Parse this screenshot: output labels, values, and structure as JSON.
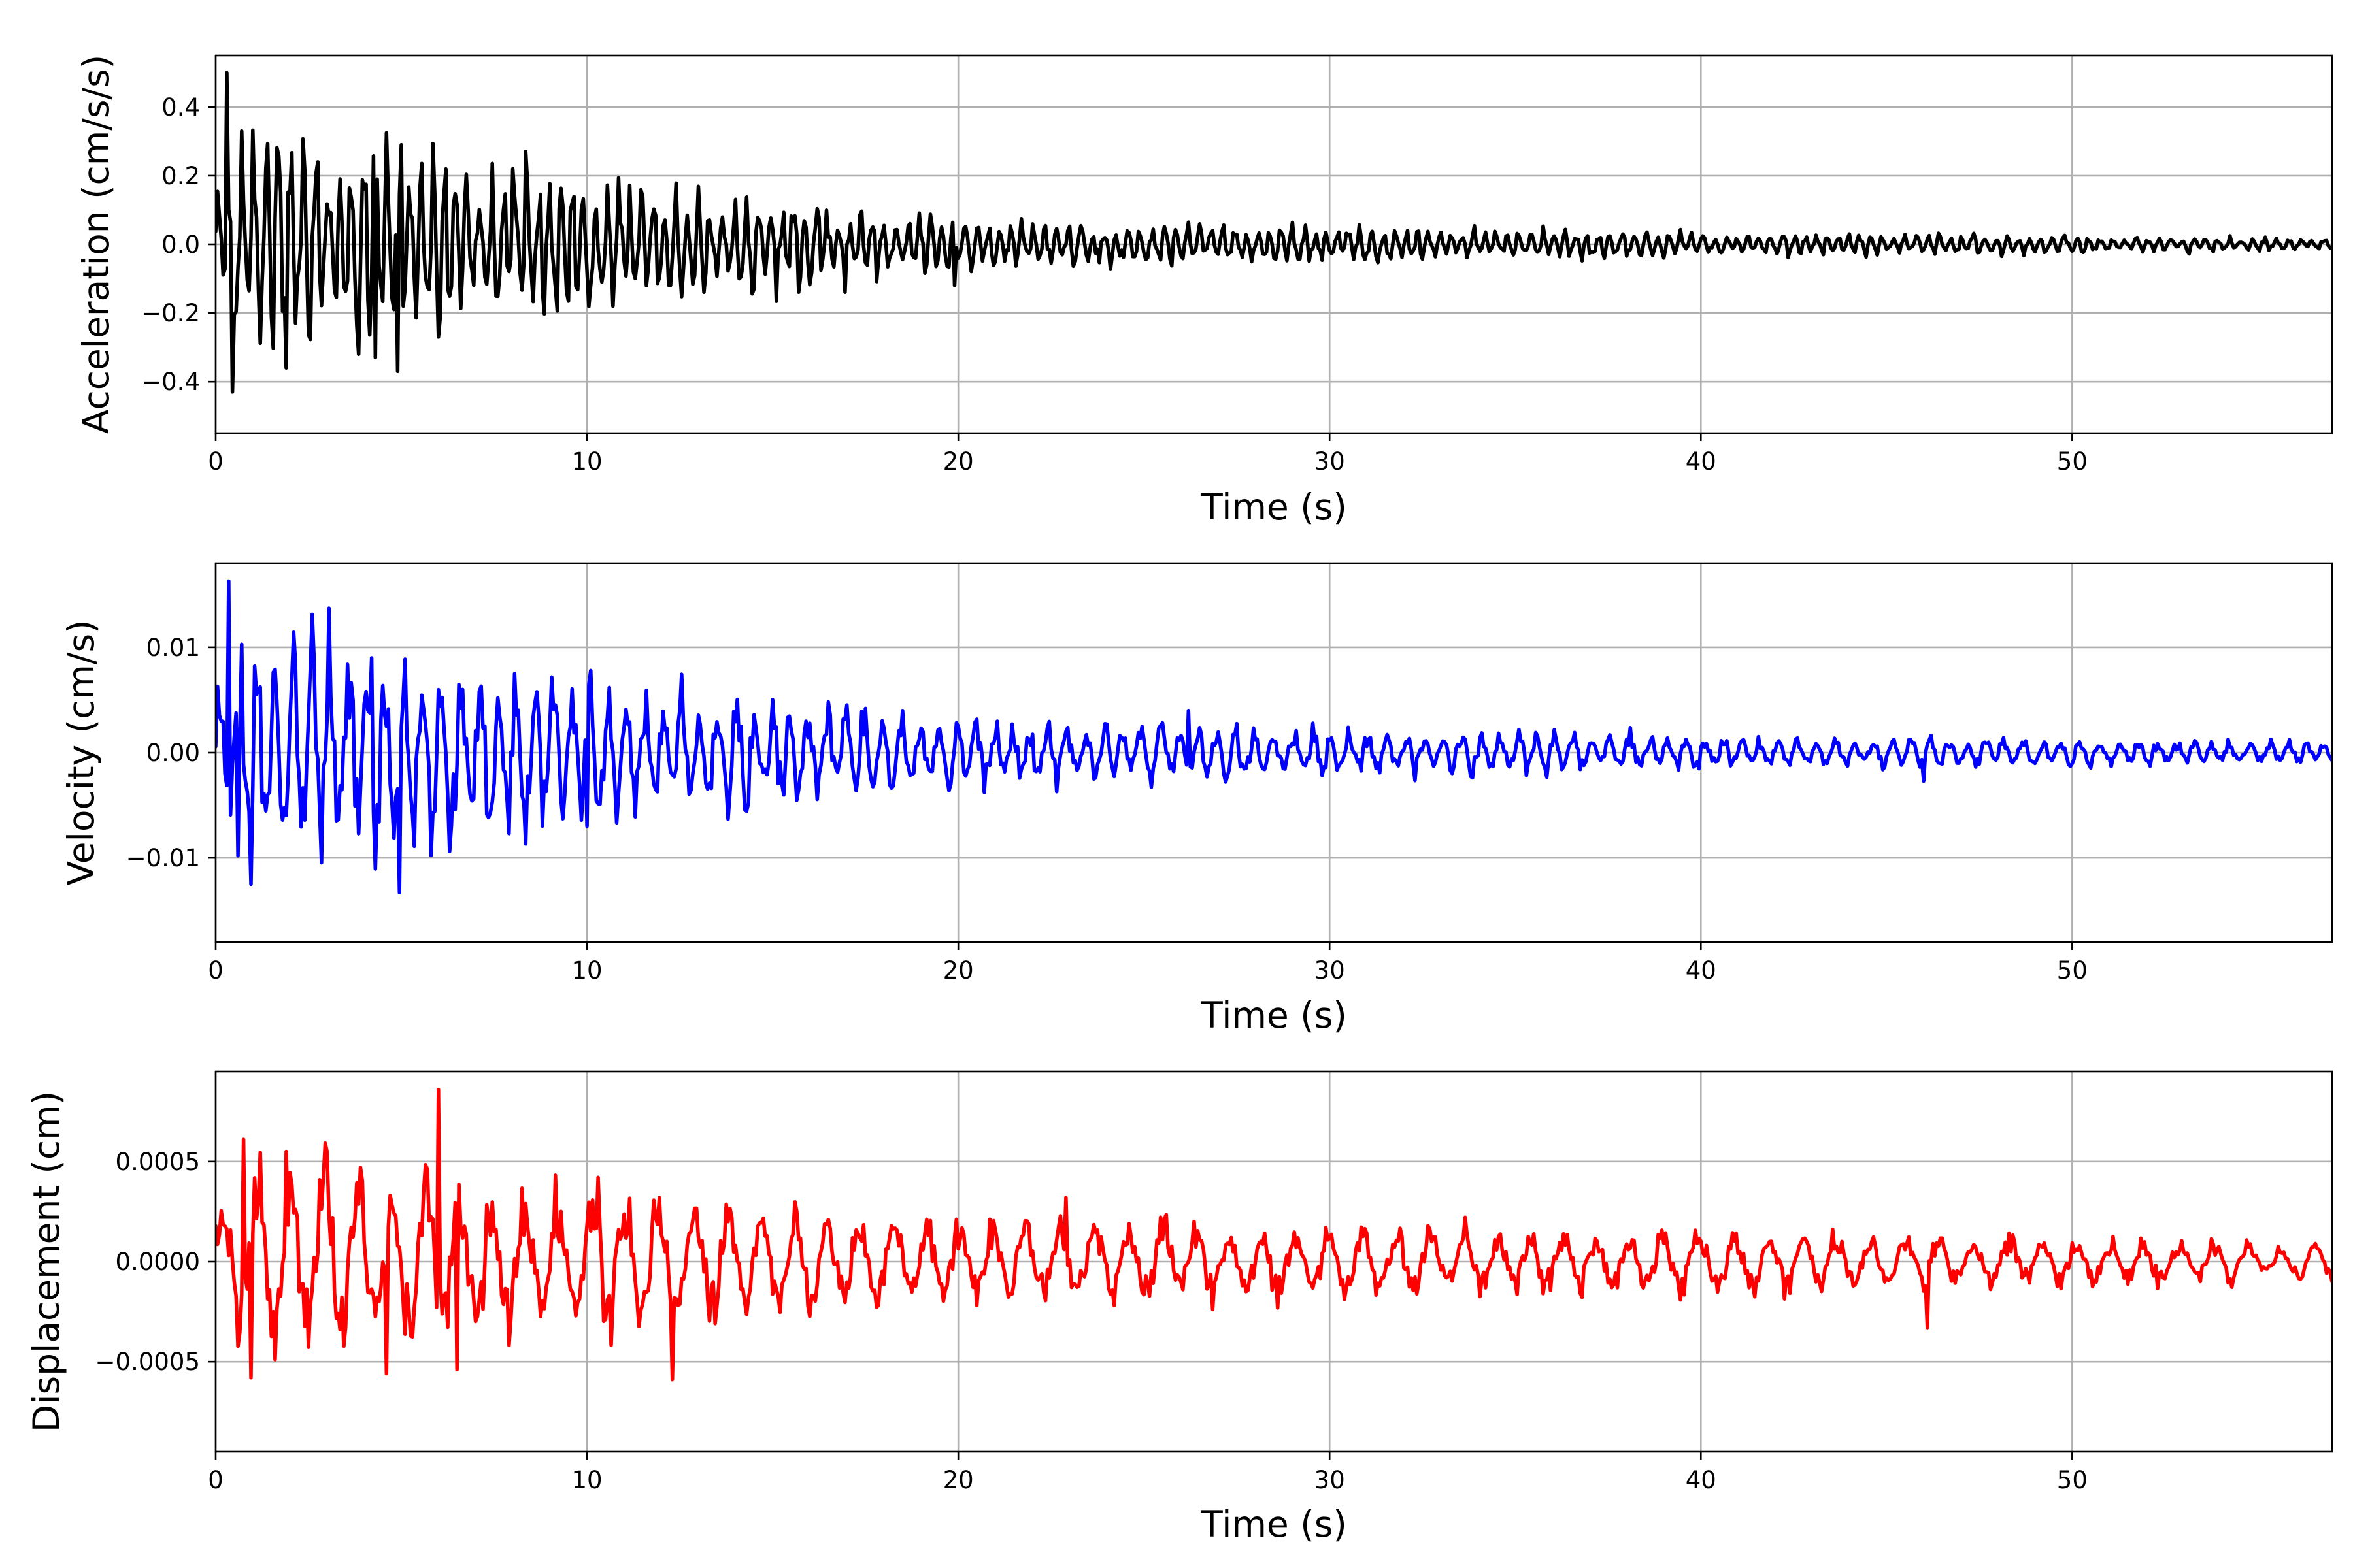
{
  "chart_data": [
    {
      "type": "line",
      "id": "acceleration",
      "xlabel": "Time (s)",
      "ylabel": "Acceleration (cm/s/s)",
      "xlim": [
        0,
        57
      ],
      "ylim": [
        -0.55,
        0.55
      ],
      "xticks": [
        0,
        10,
        20,
        30,
        40,
        50
      ],
      "xtick_labels": [
        "0",
        "10",
        "20",
        "30",
        "40",
        "50"
      ],
      "yticks": [
        -0.4,
        -0.2,
        0.0,
        0.2,
        0.4
      ],
      "ytick_labels": [
        "−0.4",
        "−0.2",
        "0.0",
        "0.2",
        "0.4"
      ],
      "grid": true,
      "color": "#000000",
      "series": [
        {
          "x_start": 0,
          "x_end": 57,
          "dt": 0.05,
          "seed": 11,
          "frequency_hz": 3.2,
          "envelope": [
            [
              0,
              0.1
            ],
            [
              1,
              0.22
            ],
            [
              5,
              0.2
            ],
            [
              10,
              0.12
            ],
            [
              15,
              0.09
            ],
            [
              20,
              0.05
            ],
            [
              30,
              0.035
            ],
            [
              40,
              0.025
            ],
            [
              57,
              0.012
            ]
          ],
          "peaks": [
            [
              0.3,
              0.5
            ],
            [
              0.45,
              -0.43
            ],
            [
              0.7,
              0.33
            ],
            [
              1.9,
              -0.36
            ],
            [
              4.3,
              -0.33
            ],
            [
              4.9,
              -0.37
            ],
            [
              5.0,
              0.29
            ],
            [
              6.0,
              -0.27
            ],
            [
              8.0,
              0.22
            ],
            [
              14.5,
              -0.13
            ],
            [
              19.9,
              -0.12
            ]
          ]
        }
      ]
    },
    {
      "type": "line",
      "id": "velocity",
      "xlabel": "Time (s)",
      "ylabel": "Velocity (cm/s)",
      "xlim": [
        0,
        57
      ],
      "ylim": [
        -0.018,
        0.018
      ],
      "xticks": [
        0,
        10,
        20,
        30,
        40,
        50
      ],
      "xtick_labels": [
        "0",
        "10",
        "20",
        "30",
        "40",
        "50"
      ],
      "yticks": [
        -0.01,
        0.0,
        0.01
      ],
      "ytick_labels": [
        "−0.01",
        "0.00",
        "0.01"
      ],
      "grid": true,
      "color": "#0000ff",
      "series": [
        {
          "x_start": 0,
          "x_end": 57,
          "dt": 0.05,
          "seed": 23,
          "frequency_hz": 2.0,
          "envelope": [
            [
              0,
              0.004
            ],
            [
              1,
              0.008
            ],
            [
              5,
              0.007
            ],
            [
              10,
              0.0045
            ],
            [
              15,
              0.0035
            ],
            [
              20,
              0.0022
            ],
            [
              30,
              0.0015
            ],
            [
              40,
              0.0012
            ],
            [
              57,
              0.0007
            ]
          ],
          "peaks": [
            [
              0.35,
              0.0163
            ],
            [
              0.6,
              -0.0098
            ],
            [
              0.95,
              -0.0125
            ],
            [
              0.7,
              0.0103
            ],
            [
              4.2,
              0.009
            ],
            [
              4.95,
              -0.0133
            ],
            [
              10.1,
              0.0078
            ],
            [
              10.0,
              -0.007
            ],
            [
              26.2,
              0.004
            ],
            [
              46.0,
              -0.0027
            ]
          ]
        }
      ]
    },
    {
      "type": "line",
      "id": "displacement",
      "xlabel": "Time (s)",
      "ylabel": "Displacement (cm)",
      "xlim": [
        0,
        57
      ],
      "ylim": [
        -0.00095,
        0.00095
      ],
      "xticks": [
        0,
        10,
        20,
        30,
        40,
        50
      ],
      "xtick_labels": [
        "0",
        "10",
        "20",
        "30",
        "40",
        "50"
      ],
      "yticks": [
        -0.0005,
        0.0,
        0.0005
      ],
      "ytick_labels": [
        "−0.0005",
        "0.0000",
        "0.0005"
      ],
      "grid": true,
      "color": "#ff0000",
      "series": [
        {
          "x_start": 0,
          "x_end": 57,
          "dt": 0.05,
          "seed": 37,
          "frequency_hz": 1.1,
          "envelope": [
            [
              0,
              0.00025
            ],
            [
              1,
              0.00035
            ],
            [
              5,
              0.0003
            ],
            [
              10,
              0.00025
            ],
            [
              15,
              0.0002
            ],
            [
              20,
              0.00016
            ],
            [
              30,
              0.00012
            ],
            [
              40,
              0.00011
            ],
            [
              57,
              6e-05
            ]
          ],
          "peaks": [
            [
              0.75,
              0.00061
            ],
            [
              0.95,
              -0.00058
            ],
            [
              1.9,
              0.00055
            ],
            [
              4.6,
              -0.00056
            ],
            [
              6.0,
              0.00086
            ],
            [
              6.5,
              -0.00054
            ],
            [
              10.3,
              0.00042
            ],
            [
              12.3,
              -0.00059
            ],
            [
              22.9,
              0.00032
            ],
            [
              46.1,
              -0.00033
            ]
          ]
        }
      ]
    }
  ]
}
